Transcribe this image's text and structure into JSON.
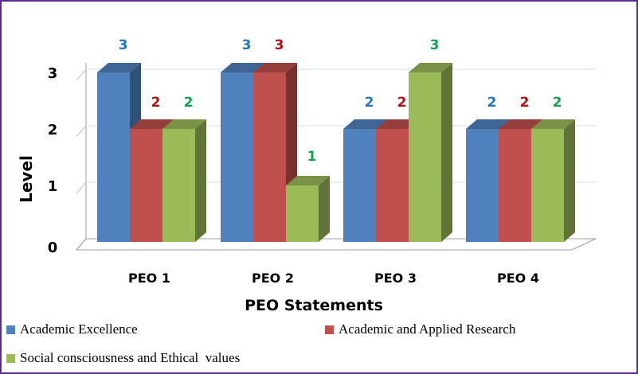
{
  "chart_data": {
    "type": "bar",
    "title": "",
    "xlabel": "PEO Statements",
    "ylabel": "Level",
    "categories": [
      "PEO 1",
      "PEO 2",
      "PEO 3",
      "PEO 4"
    ],
    "yticks": [
      "0",
      "1",
      "2",
      "3"
    ],
    "ylim": [
      0,
      3
    ],
    "grid": true,
    "legend_position": "bottom",
    "series": [
      {
        "name": "Academic Excellence",
        "color": "#4f81bd",
        "label_color": "#1f77c4",
        "values": [
          3,
          3,
          2,
          2
        ]
      },
      {
        "name": "Academic and Applied Research",
        "color": "#c0504d",
        "label_color": "#b01010",
        "values": [
          2,
          3,
          2,
          2
        ]
      },
      {
        "name": "Social consciousness and Ethical  values",
        "color": "#9bbb59",
        "label_color": "#10a050",
        "values": [
          2,
          1,
          3,
          2
        ]
      }
    ]
  }
}
